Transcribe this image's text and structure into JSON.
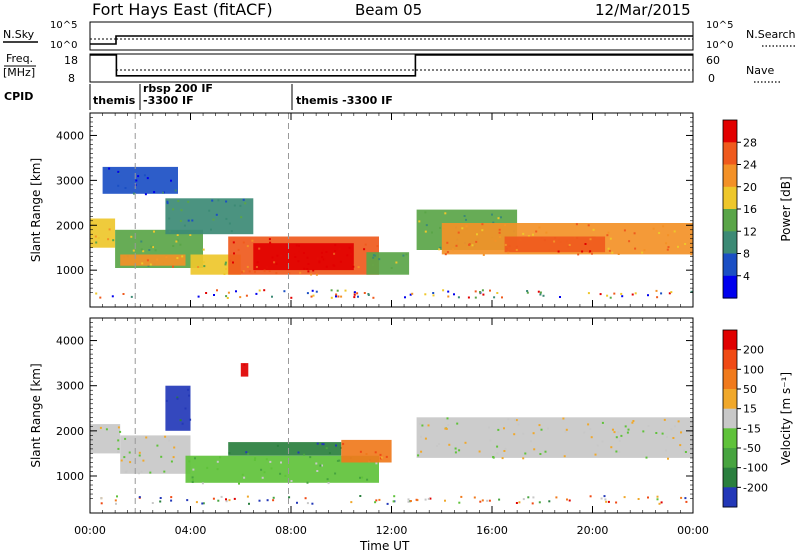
{
  "header": {
    "station": "Fort Hays East (fitACF)",
    "beam": "Beam 05",
    "date": "12/Mar/2015"
  },
  "status_panels": {
    "nsky_label": "N.Sky",
    "nsky_ticks": [
      "10^5",
      "10^0"
    ],
    "nsearch_label": "N.Search",
    "nsearch_ticks": [
      "10^5",
      "10^0"
    ],
    "freq_label": "Freq.",
    "freq_unit": "[MHz]",
    "freq_ticks": [
      "18",
      "8"
    ],
    "nave_label": "Nave",
    "nave_ticks": [
      "60",
      "0"
    ],
    "cpid_label": "CPID",
    "cpid_segments": [
      {
        "start_h": 0.0,
        "label": "themis"
      },
      {
        "start_h": 1.8,
        "label": "rbsp 200 IF"
      },
      {
        "start_h": 1.8,
        "label": "-3300 IF"
      },
      {
        "start_h": 7.9,
        "label": "themis -3300 IF"
      }
    ],
    "freq_series": [
      {
        "t": 0.0,
        "v": 18
      },
      {
        "t": 1.05,
        "v": 18
      },
      {
        "t": 1.05,
        "v": 10
      },
      {
        "t": 12.95,
        "v": 10
      },
      {
        "t": 12.95,
        "v": 18
      },
      {
        "t": 24.0,
        "v": 18
      }
    ]
  },
  "chart_data": [
    {
      "type": "heatmap",
      "ylabel": "Slant Range [km]",
      "x_range_h": [
        0,
        24
      ],
      "ylim": [
        180,
        4500
      ],
      "y_ticks": [
        "1000",
        "2000",
        "3000",
        "4000"
      ],
      "colorbar_label": "Power [dB]",
      "colorbar_ticks": [
        "4",
        "8",
        "12",
        "16",
        "20",
        "24",
        "28"
      ],
      "colors": [
        "#0000ee",
        "#1b4fc4",
        "#3c8a75",
        "#5aa548",
        "#eec72b",
        "#f39127",
        "#ef5a1d",
        "#e20000"
      ],
      "range_bands": [
        {
          "t0": 0.0,
          "t1": 1.0,
          "r_lo": 1500,
          "r_hi": 2150,
          "level": 4
        },
        {
          "t0": 1.0,
          "t1": 4.5,
          "r_lo": 1050,
          "r_hi": 1900,
          "level": 3
        },
        {
          "t0": 1.2,
          "t1": 3.8,
          "r_lo": 1100,
          "r_hi": 1350,
          "level": 5
        },
        {
          "t0": 4.0,
          "t1": 6.0,
          "r_lo": 900,
          "r_hi": 1350,
          "level": 4
        },
        {
          "t0": 5.5,
          "t1": 11.5,
          "r_lo": 900,
          "r_hi": 1750,
          "level": 6
        },
        {
          "t0": 6.5,
          "t1": 10.5,
          "r_lo": 1000,
          "r_hi": 1600,
          "level": 7
        },
        {
          "t0": 11.0,
          "t1": 12.7,
          "r_lo": 900,
          "r_hi": 1400,
          "level": 3
        },
        {
          "t0": 13.0,
          "t1": 17.0,
          "r_lo": 1450,
          "r_hi": 2350,
          "level": 3
        },
        {
          "t0": 14.0,
          "t1": 24.0,
          "r_lo": 1350,
          "r_hi": 2050,
          "level": 5
        },
        {
          "t0": 16.5,
          "t1": 20.5,
          "r_lo": 1400,
          "r_hi": 1750,
          "level": 6
        },
        {
          "t0": 3.0,
          "t1": 6.5,
          "r_lo": 1800,
          "r_hi": 2600,
          "level": 2
        },
        {
          "t0": 0.5,
          "t1": 3.5,
          "r_lo": 2700,
          "r_hi": 3300,
          "level": 1
        }
      ]
    },
    {
      "type": "heatmap",
      "ylabel": "Slant Range [km]",
      "x_range_h": [
        0,
        24
      ],
      "ylim": [
        180,
        4500
      ],
      "y_ticks": [
        "1000",
        "2000",
        "3000",
        "4000"
      ],
      "colorbar_label": "Velocity [m s⁻¹]",
      "colorbar_ticks": [
        "200",
        "100",
        "50",
        "15",
        "-15",
        "-50",
        "-100",
        "-200"
      ],
      "colors": [
        "#2338b8",
        "#2a7f3e",
        "#47a43f",
        "#5fc23a",
        "#c8c8c8",
        "#f0a82b",
        "#f07a1c",
        "#f04a14",
        "#e00000"
      ],
      "range_bands": [
        {
          "t0": 0.0,
          "t1": 1.2,
          "r_lo": 1500,
          "r_hi": 2150,
          "level": 4
        },
        {
          "t0": 1.2,
          "t1": 4.0,
          "r_lo": 1050,
          "r_hi": 1900,
          "level": 4
        },
        {
          "t0": 3.8,
          "t1": 11.5,
          "r_lo": 850,
          "r_hi": 1450,
          "level": 3
        },
        {
          "t0": 5.5,
          "t1": 10.0,
          "r_lo": 1450,
          "r_hi": 1750,
          "level": 1
        },
        {
          "t0": 10.0,
          "t1": 12.0,
          "r_lo": 1300,
          "r_hi": 1800,
          "level": 6
        },
        {
          "t0": 3.0,
          "t1": 4.0,
          "r_lo": 2000,
          "r_hi": 3000,
          "level": 0
        },
        {
          "t0": 13.0,
          "t1": 24.0,
          "r_lo": 1400,
          "r_hi": 2300,
          "level": 4
        },
        {
          "t0": 6.0,
          "t1": 6.3,
          "r_lo": 3200,
          "r_hi": 3500,
          "level": 8
        }
      ]
    }
  ],
  "x_axis": {
    "label": "Time UT",
    "ticks": [
      "00:00",
      "04:00",
      "08:00",
      "12:00",
      "16:00",
      "20:00",
      "00:00"
    ]
  }
}
